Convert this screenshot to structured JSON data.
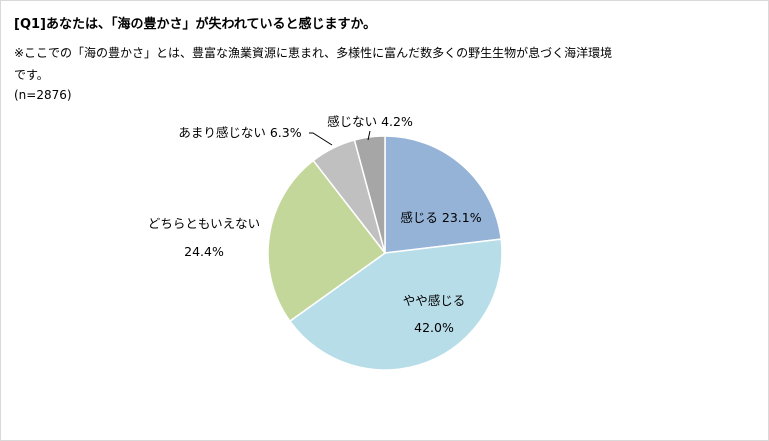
{
  "chart_data": {
    "type": "pie",
    "title": "[Q1]あなたは、「海の豊かさ」が失われていると感じますか。",
    "note": "※ここでの「海の豊かさ」とは、豊富な漁業資源に恵まれ、多様性に富んだ数多くの野生生物が息づく海洋環境です。",
    "sample": "(n=2876)",
    "slices": [
      {
        "label": "感じる",
        "value": 23.1,
        "value_label": "23.1%",
        "color": "#95b3d7"
      },
      {
        "label": "やや感じる",
        "value": 42.0,
        "value_label": "42.0%",
        "color": "#b7dde8"
      },
      {
        "label": "どちらともいえない",
        "value": 24.4,
        "value_label": "24.4%",
        "color": "#c4d79b"
      },
      {
        "label": "あまり感じない",
        "value": 6.3,
        "value_label": "6.3%",
        "color": "#c0c0c0"
      },
      {
        "label": "感じない",
        "value": 4.2,
        "value_label": "4.2%",
        "color": "#a6a6a6"
      }
    ]
  }
}
